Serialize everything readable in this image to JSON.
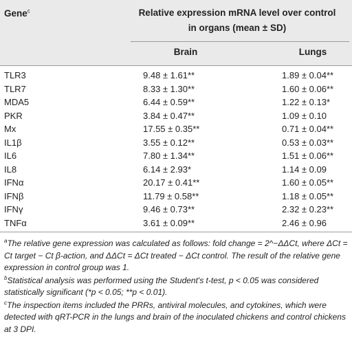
{
  "header": {
    "gene_label": "Gene",
    "gene_sup": "c",
    "relative_line1": "Relative expression mRNA level over control",
    "relative_line2": "in organs (mean ± SD)",
    "brain": "Brain",
    "lungs": "Lungs"
  },
  "rows": [
    {
      "gene": "TLR3",
      "brain": "9.48 ± 1.61**",
      "lungs": "1.89 ± 0.04**"
    },
    {
      "gene": "TLR7",
      "brain": "8.33 ± 1.30**",
      "lungs": "1.60 ± 0.06**"
    },
    {
      "gene": "MDA5",
      "brain": "6.44 ± 0.59**",
      "lungs": "1.22 ± 0.13*"
    },
    {
      "gene": "PKR",
      "brain": "3.84 ± 0.47**",
      "lungs": "1.09 ± 0.10"
    },
    {
      "gene": "Mx",
      "brain": "17.55 ± 0.35**",
      "lungs": "0.71 ± 0.04**"
    },
    {
      "gene": "IL1β",
      "brain": "3.55 ± 0.12**",
      "lungs": "0.53 ± 0.03**"
    },
    {
      "gene": "IL6",
      "brain": "7.80 ± 1.34**",
      "lungs": "1.51 ± 0.06**"
    },
    {
      "gene": "IL8",
      "brain": "6.14 ± 2.93*",
      "lungs": "1.14 ± 0.09"
    },
    {
      "gene": "IFNα",
      "brain": "20.17 ± 0.41**",
      "lungs": "1.60 ± 0.05**"
    },
    {
      "gene": "IFNβ",
      "brain": "11.79 ± 0.58**",
      "lungs": "1.18 ± 0.05**"
    },
    {
      "gene": "IFNγ",
      "brain": "9.46 ± 0.73**",
      "lungs": "2.32 ± 0.23**"
    },
    {
      "gene": "TNFα",
      "brain": "3.61 ± 0.09**",
      "lungs": "2.46 ± 0.96"
    }
  ],
  "footnotes": [
    {
      "mark": "a",
      "text": "The relative gene expression was calculated as follows: fold change = 2^−ΔΔCt, where ΔCt = Ct target − Ct β-action, and ΔΔCt = ΔCt treated − ΔCt control. The result of the relative gene expression in control group was 1."
    },
    {
      "mark": "b",
      "text": "Statistical analysis was performed using the Student's t-test, p < 0.05 was considered statistically significant (*p < 0.05; **p < 0.01)."
    },
    {
      "mark": "c",
      "text": "The inspection items included the PRRs, antiviral molecules, and cytokines, which were detected with qRT-PCR in the lungs and brain of the inoculated chickens and control chickens at 3 DPI."
    }
  ]
}
